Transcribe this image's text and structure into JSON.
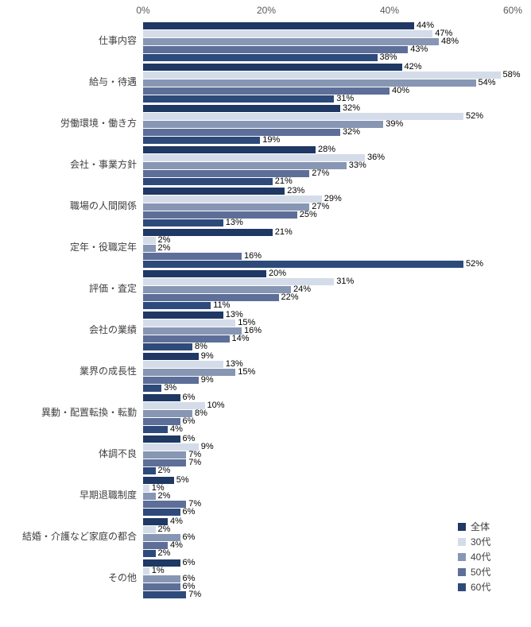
{
  "chart_data": {
    "type": "bar",
    "orientation": "horizontal",
    "title": "",
    "xlabel": "",
    "ylabel": "",
    "value_suffix": "%",
    "grid": false,
    "legend_position": "bottom-right",
    "x_axis": {
      "ticks": [
        "0%",
        "20%",
        "40%",
        "60%"
      ],
      "tick_values": [
        0,
        20,
        40,
        60
      ],
      "min": 0,
      "max": 60
    },
    "categories": [
      "仕事内容",
      "給与・待遇",
      "労働環境・働き方",
      "会社・事業方針",
      "職場の人間関係",
      "定年・役職定年",
      "評価・査定",
      "会社の業績",
      "業界の成長性",
      "異動・配置転換・転勤",
      "体調不良",
      "早期退職制度",
      "結婚・介護など家庭の都合",
      "その他"
    ],
    "series": [
      {
        "name": "全体",
        "color": "#1F3864",
        "values": [
          44,
          42,
          32,
          28,
          23,
          21,
          20,
          13,
          9,
          6,
          6,
          5,
          4,
          6
        ]
      },
      {
        "name": "30代",
        "color": "#D5DCE9",
        "values": [
          47,
          58,
          52,
          36,
          29,
          2,
          31,
          15,
          13,
          10,
          9,
          1,
          2,
          1
        ]
      },
      {
        "name": "40代",
        "color": "#8796B3",
        "values": [
          48,
          54,
          39,
          33,
          27,
          2,
          24,
          16,
          15,
          8,
          7,
          2,
          6,
          6
        ]
      },
      {
        "name": "50代",
        "color": "#5D6F98",
        "values": [
          43,
          40,
          32,
          27,
          25,
          16,
          22,
          14,
          9,
          6,
          7,
          7,
          4,
          6
        ]
      },
      {
        "name": "60代",
        "color": "#2D4A7A",
        "values": [
          38,
          31,
          19,
          21,
          13,
          52,
          11,
          8,
          3,
          4,
          2,
          6,
          2,
          7
        ]
      }
    ]
  }
}
